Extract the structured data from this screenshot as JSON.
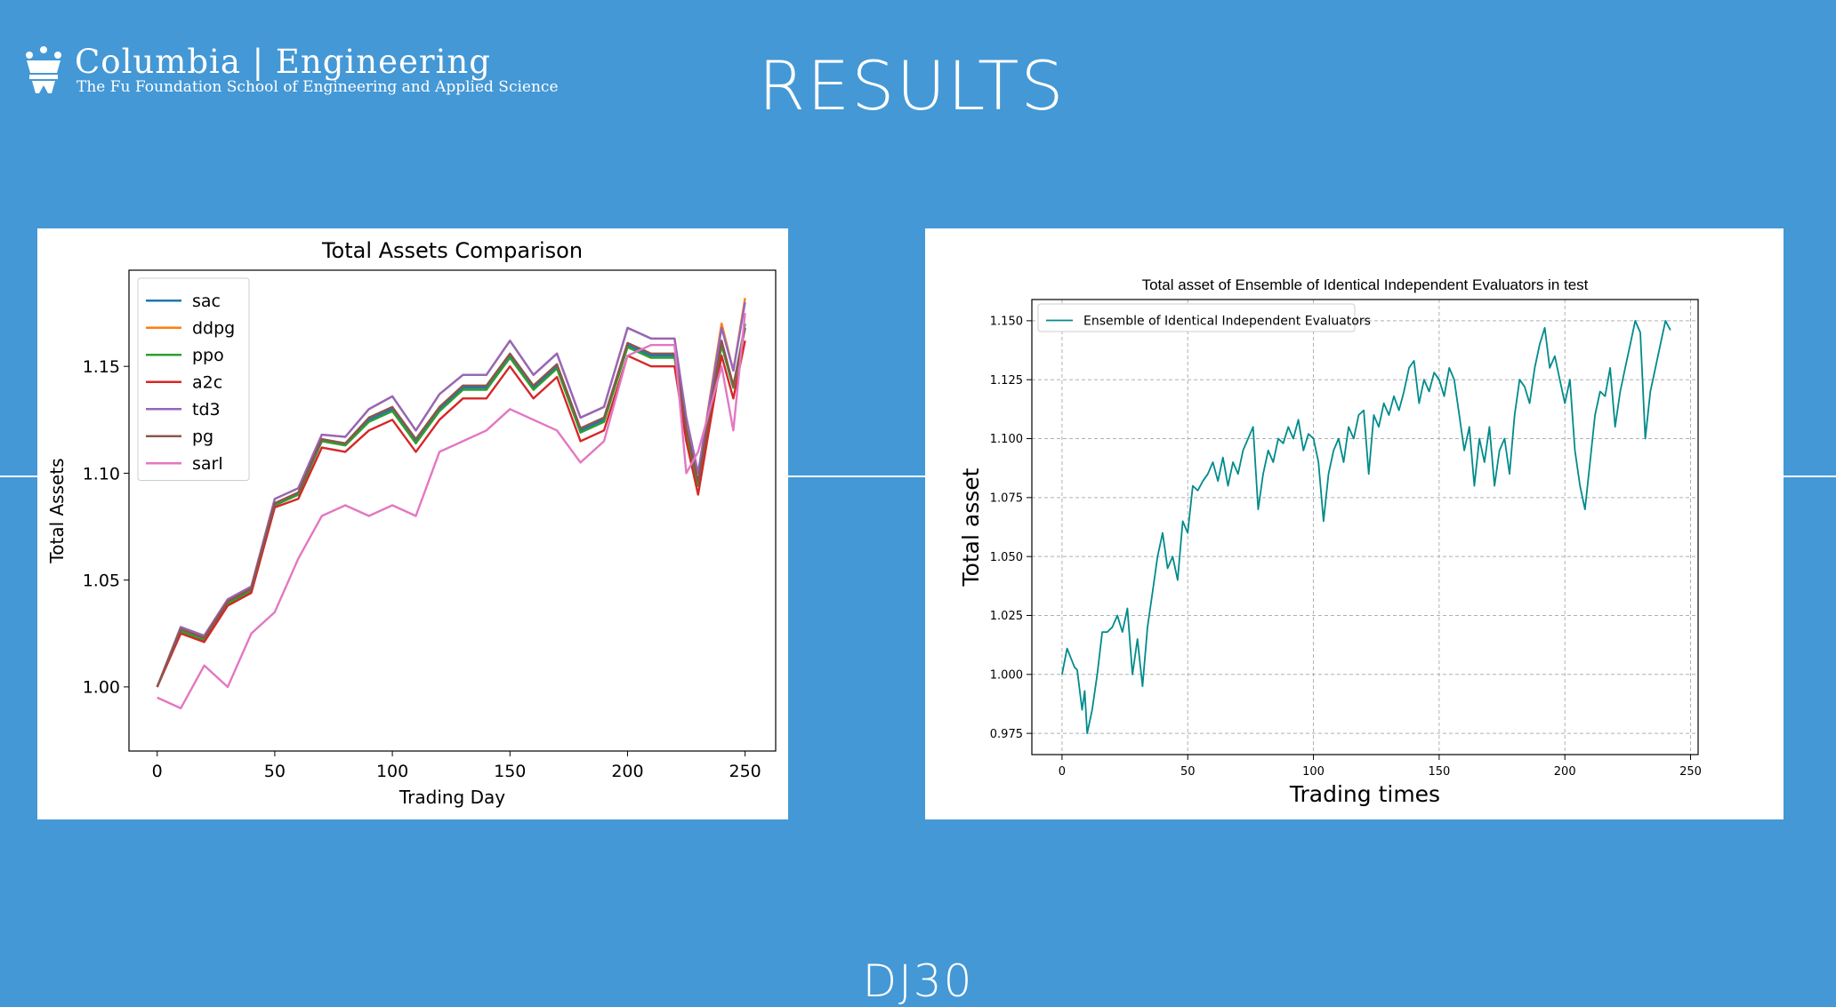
{
  "header": {
    "logo_primary": "Columbia | Engineering",
    "logo_secondary": "The Fu Foundation School of Engineering and Applied Science",
    "title": "RESULTS"
  },
  "footer": {
    "label": "DJ30"
  },
  "chart_data": [
    {
      "type": "line",
      "title": "Total Assets Comparison",
      "xlabel": "Trading Day",
      "ylabel": "Total Assets",
      "xlim": [
        -12,
        263
      ],
      "ylim": [
        0.97,
        1.195
      ],
      "xticks": [
        0,
        50,
        100,
        150,
        200,
        250
      ],
      "yticks": [
        1.0,
        1.05,
        1.1,
        1.15
      ],
      "legend_position": "top-left",
      "grid": false,
      "x": [
        0,
        10,
        20,
        30,
        40,
        50,
        60,
        70,
        80,
        90,
        100,
        110,
        120,
        130,
        140,
        150,
        160,
        170,
        180,
        190,
        200,
        210,
        220,
        225,
        230,
        240,
        245,
        250
      ],
      "series": [
        {
          "name": "sac",
          "color": "#1f77b4",
          "values": [
            1.0,
            1.026,
            1.022,
            1.039,
            1.045,
            1.085,
            1.09,
            1.115,
            1.114,
            1.125,
            1.13,
            1.115,
            1.13,
            1.14,
            1.14,
            1.155,
            1.14,
            1.15,
            1.12,
            1.125,
            1.16,
            1.155,
            1.155,
            1.12,
            1.095,
            1.16,
            1.14,
            1.168
          ]
        },
        {
          "name": "ddpg",
          "color": "#ff7f0e",
          "values": [
            1.0,
            1.028,
            1.024,
            1.041,
            1.047,
            1.088,
            1.093,
            1.118,
            1.117,
            1.13,
            1.136,
            1.12,
            1.137,
            1.146,
            1.146,
            1.162,
            1.146,
            1.156,
            1.126,
            1.131,
            1.168,
            1.163,
            1.163,
            1.126,
            1.1,
            1.17,
            1.148,
            1.182
          ]
        },
        {
          "name": "ppo",
          "color": "#2ca02c",
          "values": [
            1.0,
            1.026,
            1.022,
            1.039,
            1.045,
            1.085,
            1.09,
            1.115,
            1.113,
            1.124,
            1.129,
            1.114,
            1.129,
            1.139,
            1.139,
            1.154,
            1.139,
            1.149,
            1.119,
            1.124,
            1.159,
            1.154,
            1.154,
            1.119,
            1.094,
            1.16,
            1.14,
            1.17
          ]
        },
        {
          "name": "a2c",
          "color": "#d62728",
          "values": [
            1.0,
            1.025,
            1.021,
            1.038,
            1.044,
            1.084,
            1.088,
            1.112,
            1.11,
            1.12,
            1.125,
            1.11,
            1.125,
            1.135,
            1.135,
            1.15,
            1.135,
            1.145,
            1.115,
            1.12,
            1.155,
            1.15,
            1.15,
            1.115,
            1.09,
            1.155,
            1.135,
            1.162
          ]
        },
        {
          "name": "td3",
          "color": "#9467bd",
          "values": [
            1.0,
            1.028,
            1.024,
            1.041,
            1.047,
            1.088,
            1.093,
            1.118,
            1.117,
            1.13,
            1.136,
            1.12,
            1.137,
            1.146,
            1.146,
            1.162,
            1.146,
            1.156,
            1.126,
            1.131,
            1.168,
            1.163,
            1.163,
            1.126,
            1.1,
            1.168,
            1.148,
            1.18
          ]
        },
        {
          "name": "pg",
          "color": "#8c564b",
          "values": [
            1.0,
            1.027,
            1.023,
            1.04,
            1.046,
            1.086,
            1.091,
            1.116,
            1.114,
            1.126,
            1.131,
            1.116,
            1.131,
            1.141,
            1.141,
            1.156,
            1.141,
            1.151,
            1.121,
            1.126,
            1.161,
            1.156,
            1.156,
            1.121,
            1.096,
            1.162,
            1.141,
            1.168
          ]
        },
        {
          "name": "sarl",
          "color": "#e377c2",
          "values": [
            0.995,
            0.99,
            1.01,
            1.0,
            1.025,
            1.035,
            1.06,
            1.08,
            1.085,
            1.08,
            1.085,
            1.08,
            1.11,
            1.115,
            1.12,
            1.13,
            1.125,
            1.12,
            1.105,
            1.115,
            1.155,
            1.16,
            1.16,
            1.1,
            1.11,
            1.15,
            1.12,
            1.175
          ]
        }
      ]
    },
    {
      "type": "line",
      "title": "Total asset of Ensemble of Identical Independent Evaluators in test",
      "xlabel": "Trading times",
      "ylabel": "Total asset",
      "xlim": [
        -12,
        253
      ],
      "ylim": [
        0.966,
        1.159
      ],
      "xticks": [
        0,
        50,
        100,
        150,
        200,
        250
      ],
      "yticks": [
        0.975,
        1.0,
        1.025,
        1.05,
        1.075,
        1.1,
        1.125,
        1.15
      ],
      "legend_position": "top-left",
      "grid": true,
      "series": [
        {
          "name": "Ensemble of Identical Independent Evaluators",
          "color": "#008b8b",
          "x": [
            0,
            2,
            5,
            6,
            8,
            9,
            10,
            12,
            14,
            16,
            18,
            20,
            22,
            24,
            26,
            28,
            30,
            32,
            34,
            36,
            38,
            40,
            42,
            44,
            46,
            48,
            50,
            52,
            54,
            56,
            58,
            60,
            62,
            64,
            66,
            68,
            70,
            72,
            74,
            76,
            78,
            80,
            82,
            84,
            86,
            88,
            90,
            92,
            94,
            96,
            98,
            100,
            102,
            104,
            106,
            108,
            110,
            112,
            114,
            116,
            118,
            120,
            122,
            124,
            126,
            128,
            130,
            132,
            134,
            136,
            138,
            140,
            142,
            144,
            146,
            148,
            150,
            152,
            154,
            156,
            158,
            160,
            162,
            164,
            166,
            168,
            170,
            172,
            174,
            176,
            178,
            180,
            182,
            184,
            186,
            188,
            190,
            192,
            194,
            196,
            198,
            200,
            202,
            204,
            206,
            208,
            210,
            212,
            214,
            216,
            218,
            220,
            222,
            224,
            226,
            228,
            230,
            232,
            234,
            236,
            238,
            240,
            242
          ],
          "values": [
            1.0,
            1.011,
            1.003,
            1.002,
            0.985,
            0.993,
            0.975,
            0.985,
            1.0,
            1.018,
            1.018,
            1.02,
            1.025,
            1.018,
            1.028,
            1.0,
            1.015,
            0.995,
            1.02,
            1.035,
            1.05,
            1.06,
            1.045,
            1.05,
            1.04,
            1.065,
            1.06,
            1.08,
            1.078,
            1.082,
            1.085,
            1.09,
            1.082,
            1.092,
            1.08,
            1.09,
            1.085,
            1.095,
            1.1,
            1.105,
            1.07,
            1.085,
            1.095,
            1.09,
            1.1,
            1.098,
            1.105,
            1.1,
            1.108,
            1.095,
            1.102,
            1.1,
            1.09,
            1.065,
            1.085,
            1.095,
            1.1,
            1.09,
            1.105,
            1.1,
            1.11,
            1.112,
            1.085,
            1.11,
            1.105,
            1.115,
            1.11,
            1.118,
            1.112,
            1.12,
            1.13,
            1.133,
            1.115,
            1.125,
            1.12,
            1.128,
            1.125,
            1.118,
            1.13,
            1.125,
            1.11,
            1.095,
            1.105,
            1.08,
            1.1,
            1.09,
            1.105,
            1.08,
            1.095,
            1.1,
            1.085,
            1.11,
            1.125,
            1.122,
            1.115,
            1.13,
            1.14,
            1.147,
            1.13,
            1.135,
            1.125,
            1.115,
            1.125,
            1.095,
            1.08,
            1.07,
            1.09,
            1.11,
            1.12,
            1.118,
            1.13,
            1.105,
            1.12,
            1.13,
            1.14,
            1.15,
            1.145,
            1.1,
            1.12,
            1.13,
            1.14,
            1.15,
            1.146
          ]
        }
      ]
    }
  ]
}
